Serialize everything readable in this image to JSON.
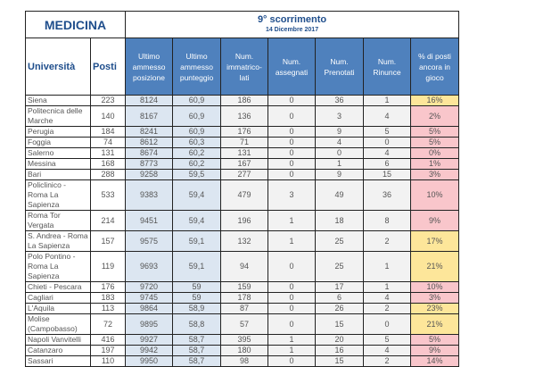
{
  "title": "MEDICINA",
  "round": "9° scorrimento",
  "date": "14 Dicembre 2017",
  "headers": [
    "Università",
    "Posti",
    "Ultimo ammesso posizione",
    "Ultimo ammesso punteggio",
    "Num. immatrico-lati",
    "Num. assegnati",
    "Num. Prenotati",
    "Num. Rinunce",
    "% di posti ancora in gioco"
  ],
  "colors": {
    "header": "#4f81bd",
    "pink": "#f9c6cb",
    "yellow": "#fde69a",
    "highlight_red": "#e02020"
  },
  "rows": [
    [
      "Siena",
      "223",
      "8124",
      "60,9",
      "186",
      "0",
      "36",
      "1",
      "16%"
    ],
    [
      "Politecnica delle Marche",
      "140",
      "8167",
      "60,9",
      "136",
      "0",
      "3",
      "4",
      "2%"
    ],
    [
      "Perugia",
      "184",
      "8241",
      "60,9",
      "176",
      "0",
      "9",
      "5",
      "5%"
    ],
    [
      "Foggia",
      "74",
      "8612",
      "60,3",
      "71",
      "0",
      "4",
      "0",
      "5%"
    ],
    [
      "Salerno",
      "131",
      "8674",
      "60,2",
      "131",
      "0",
      "0",
      "4",
      "0%"
    ],
    [
      "Messina",
      "168",
      "8773",
      "60,2",
      "167",
      "0",
      "1",
      "6",
      "1%"
    ],
    [
      "Bari",
      "288",
      "9258",
      "59,5",
      "277",
      "0",
      "9",
      "15",
      "3%"
    ],
    [
      "Policlinico - Roma La Sapienza",
      "533",
      "9383",
      "59,4",
      "479",
      "3",
      "49",
      "36",
      "10%"
    ],
    [
      "Roma Tor Vergata",
      "214",
      "9451",
      "59,4",
      "196",
      "1",
      "18",
      "8",
      "9%"
    ],
    [
      "S. Andrea - Roma La Sapienza",
      "157",
      "9575",
      "59,1",
      "132",
      "1",
      "25",
      "2",
      "17%"
    ],
    [
      "Polo Pontino - Roma La Sapienza",
      "119",
      "9693",
      "59,1",
      "94",
      "0",
      "25",
      "1",
      "21%"
    ],
    [
      "Chieti - Pescara",
      "176",
      "9720",
      "59",
      "159",
      "0",
      "17",
      "1",
      "10%"
    ],
    [
      "Cagliari",
      "183",
      "9745",
      "59",
      "178",
      "0",
      "6",
      "4",
      "3%"
    ],
    [
      "L'Aquila",
      "113",
      "9864",
      "58,9",
      "87",
      "0",
      "26",
      "2",
      "23%"
    ],
    [
      "Molise (Campobasso)",
      "72",
      "9895",
      "58,8",
      "57",
      "0",
      "15",
      "0",
      "21%"
    ],
    [
      "Napoli Vanvitelli",
      "416",
      "9927",
      "58,7",
      "395",
      "1",
      "20",
      "5",
      "5%"
    ],
    [
      "Catanzaro",
      "197",
      "9942",
      "58,7",
      "180",
      "1",
      "16",
      "4",
      "9%"
    ],
    [
      "Sassari",
      "110",
      "9950",
      "58,7",
      "98",
      "0",
      "15",
      "2",
      "14%"
    ]
  ],
  "two_line": [
    1,
    7,
    9,
    10,
    14
  ],
  "yellow_rows": [
    0,
    9,
    10,
    13,
    14
  ],
  "red_rows": [
    4
  ]
}
